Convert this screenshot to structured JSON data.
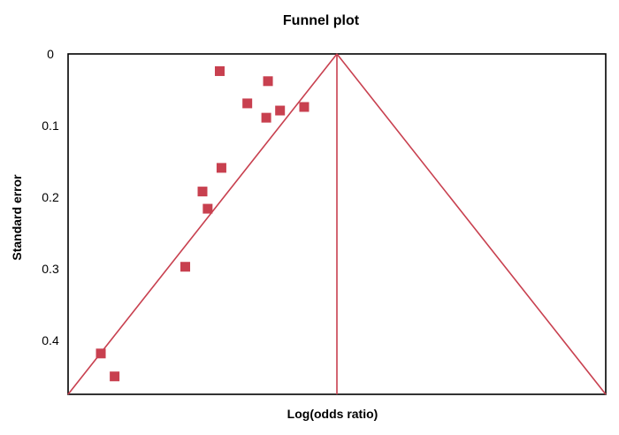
{
  "chart_data": {
    "type": "scatter",
    "title": "Funnel plot",
    "xlabel": "Log(odds ratio)",
    "ylabel": "Standard error",
    "y_axis_inverted": true,
    "ylim": [
      0,
      0.475
    ],
    "yticks": [
      "0",
      "0.1",
      "0.2",
      "0.3",
      "0.4"
    ],
    "ytick_values": [
      0,
      0.1,
      0.2,
      0.3,
      0.4
    ],
    "grid": false,
    "legend": "none",
    "x_tick_labels_shown": false,
    "funnel": {
      "apex": [
        0,
        0
      ],
      "description": "pseudo 95% confidence limits with vertical line at pooled estimate"
    },
    "series": [
      {
        "marker": "square",
        "color": "#c8404f",
        "points": [
          {
            "x": -0.34,
            "y": 0.024
          },
          {
            "x": -0.2,
            "y": 0.038
          },
          {
            "x": -0.26,
            "y": 0.069
          },
          {
            "x": -0.205,
            "y": 0.089
          },
          {
            "x": -0.165,
            "y": 0.079
          },
          {
            "x": -0.095,
            "y": 0.074
          },
          {
            "x": -0.335,
            "y": 0.159
          },
          {
            "x": -0.39,
            "y": 0.192
          },
          {
            "x": -0.375,
            "y": 0.216
          },
          {
            "x": -0.44,
            "y": 0.297
          },
          {
            "x": -0.685,
            "y": 0.418
          },
          {
            "x": -0.645,
            "y": 0.45
          }
        ]
      }
    ],
    "xlim": [
      -0.78,
      0.78
    ],
    "colors": {
      "funnel_line": "#c8404f",
      "axes": "#000000",
      "marker": "#c8404f"
    }
  }
}
